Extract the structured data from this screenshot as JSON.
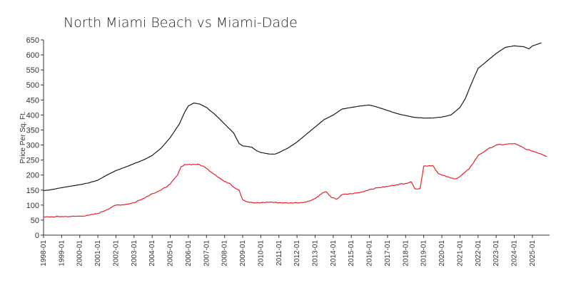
{
  "chart_data": {
    "type": "line",
    "title": "North Miami Beach vs Miami-Dade",
    "xlabel": "",
    "ylabel": "Price Per Sq. Ft.",
    "ylim": [
      0,
      650
    ],
    "yticks": [
      0,
      50,
      100,
      150,
      200,
      250,
      300,
      350,
      400,
      450,
      500,
      550,
      600,
      650
    ],
    "xlim": [
      1998.0,
      2025.95
    ],
    "xticks": [
      "1998-01",
      "1999-01",
      "2000-01",
      "2001-01",
      "2002-01",
      "2003-01",
      "2004-01",
      "2005-01",
      "2006-01",
      "2007-01",
      "2008-01",
      "2009-01",
      "2010-01",
      "2011-01",
      "2012-01",
      "2013-01",
      "2014-01",
      "2015-01",
      "2016-01",
      "2017-01",
      "2018-01",
      "2019-01",
      "2020-01",
      "2021-01",
      "2022-01",
      "2023-01",
      "2024-01",
      "2025-01"
    ],
    "legend": "none",
    "grid": false,
    "series": [
      {
        "name": "Miami-Dade",
        "color": "#1a1a1a",
        "points": [
          [
            1998.0,
            148
          ],
          [
            1998.5,
            152
          ],
          [
            1999.0,
            158
          ],
          [
            1999.5,
            163
          ],
          [
            2000.0,
            168
          ],
          [
            2000.5,
            174
          ],
          [
            2001.0,
            183
          ],
          [
            2001.5,
            200
          ],
          [
            2002.0,
            215
          ],
          [
            2002.5,
            226
          ],
          [
            2003.0,
            238
          ],
          [
            2003.5,
            250
          ],
          [
            2004.0,
            265
          ],
          [
            2004.5,
            290
          ],
          [
            2005.0,
            325
          ],
          [
            2005.5,
            370
          ],
          [
            2005.8,
            410
          ],
          [
            2006.0,
            430
          ],
          [
            2006.3,
            440
          ],
          [
            2006.6,
            437
          ],
          [
            2007.0,
            425
          ],
          [
            2007.5,
            400
          ],
          [
            2008.0,
            370
          ],
          [
            2008.5,
            340
          ],
          [
            2008.8,
            305
          ],
          [
            2009.0,
            297
          ],
          [
            2009.5,
            293
          ],
          [
            2009.8,
            280
          ],
          [
            2010.0,
            275
          ],
          [
            2010.5,
            270
          ],
          [
            2010.8,
            270
          ],
          [
            2011.0,
            275
          ],
          [
            2011.5,
            290
          ],
          [
            2012.0,
            310
          ],
          [
            2012.5,
            335
          ],
          [
            2013.0,
            360
          ],
          [
            2013.5,
            385
          ],
          [
            2014.0,
            400
          ],
          [
            2014.5,
            420
          ],
          [
            2015.0,
            425
          ],
          [
            2015.5,
            430
          ],
          [
            2016.0,
            433
          ],
          [
            2016.5,
            425
          ],
          [
            2017.0,
            415
          ],
          [
            2017.5,
            405
          ],
          [
            2018.0,
            398
          ],
          [
            2018.5,
            392
          ],
          [
            2019.0,
            390
          ],
          [
            2019.5,
            390
          ],
          [
            2020.0,
            393
          ],
          [
            2020.5,
            400
          ],
          [
            2021.0,
            425
          ],
          [
            2021.3,
            455
          ],
          [
            2021.6,
            500
          ],
          [
            2022.0,
            555
          ],
          [
            2022.5,
            580
          ],
          [
            2023.0,
            605
          ],
          [
            2023.5,
            625
          ],
          [
            2024.0,
            630
          ],
          [
            2024.5,
            628
          ],
          [
            2024.8,
            620
          ],
          [
            2025.0,
            630
          ],
          [
            2025.3,
            636
          ],
          [
            2025.5,
            640
          ]
        ]
      },
      {
        "name": "North Miami Beach",
        "color": "#e8202a",
        "points": [
          [
            1998.0,
            60
          ],
          [
            1998.5,
            61
          ],
          [
            1999.0,
            62
          ],
          [
            1999.5,
            62
          ],
          [
            2000.0,
            63
          ],
          [
            2000.5,
            66
          ],
          [
            2001.0,
            72
          ],
          [
            2001.5,
            85
          ],
          [
            2002.0,
            100
          ],
          [
            2002.5,
            102
          ],
          [
            2003.0,
            108
          ],
          [
            2003.5,
            122
          ],
          [
            2004.0,
            138
          ],
          [
            2004.5,
            150
          ],
          [
            2005.0,
            170
          ],
          [
            2005.4,
            200
          ],
          [
            2005.6,
            228
          ],
          [
            2005.8,
            235
          ],
          [
            2006.0,
            235
          ],
          [
            2006.5,
            236
          ],
          [
            2006.8,
            230
          ],
          [
            2007.0,
            222
          ],
          [
            2007.5,
            200
          ],
          [
            2008.0,
            178
          ],
          [
            2008.3,
            172
          ],
          [
            2008.5,
            160
          ],
          [
            2008.8,
            150
          ],
          [
            2009.0,
            118
          ],
          [
            2009.3,
            110
          ],
          [
            2009.7,
            107
          ],
          [
            2010.0,
            108
          ],
          [
            2010.5,
            110
          ],
          [
            2011.0,
            108
          ],
          [
            2011.5,
            107
          ],
          [
            2012.0,
            108
          ],
          [
            2012.5,
            110
          ],
          [
            2013.0,
            122
          ],
          [
            2013.4,
            140
          ],
          [
            2013.6,
            145
          ],
          [
            2013.9,
            125
          ],
          [
            2014.2,
            120
          ],
          [
            2014.5,
            135
          ],
          [
            2015.0,
            138
          ],
          [
            2015.5,
            142
          ],
          [
            2016.0,
            152
          ],
          [
            2016.5,
            158
          ],
          [
            2017.0,
            162
          ],
          [
            2017.5,
            168
          ],
          [
            2018.0,
            172
          ],
          [
            2018.3,
            178
          ],
          [
            2018.5,
            155
          ],
          [
            2018.8,
            155
          ],
          [
            2019.0,
            230
          ],
          [
            2019.5,
            232
          ],
          [
            2019.8,
            205
          ],
          [
            2020.0,
            200
          ],
          [
            2020.5,
            190
          ],
          [
            2020.8,
            188
          ],
          [
            2021.0,
            195
          ],
          [
            2021.5,
            220
          ],
          [
            2022.0,
            265
          ],
          [
            2022.5,
            285
          ],
          [
            2023.0,
            300
          ],
          [
            2023.5,
            302
          ],
          [
            2024.0,
            305
          ],
          [
            2024.3,
            297
          ],
          [
            2024.7,
            285
          ],
          [
            2025.0,
            280
          ],
          [
            2025.5,
            270
          ],
          [
            2025.8,
            262
          ]
        ]
      }
    ]
  }
}
